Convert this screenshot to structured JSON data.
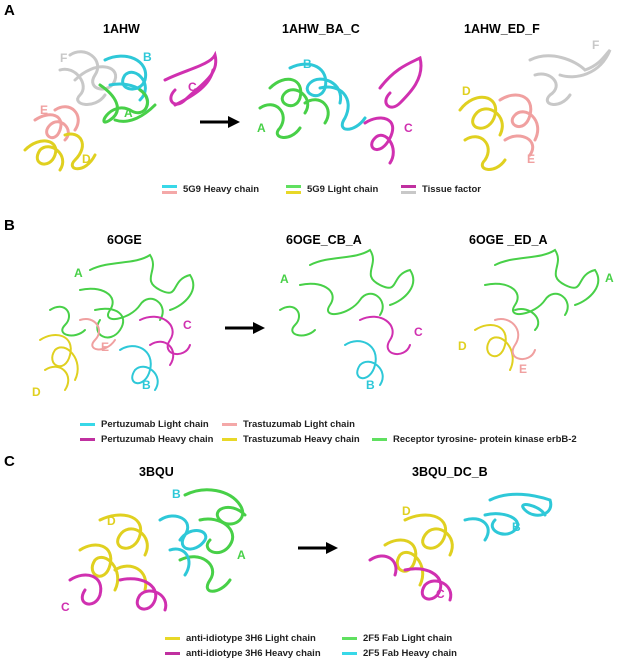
{
  "panel_A": {
    "letter": "A",
    "titles": [
      "1AHW",
      "1AHW_BA_C",
      "1AHW_ED_F"
    ],
    "structures": [
      {
        "labels": [
          {
            "text": "F",
            "color": "#c8c8c8"
          },
          {
            "text": "B",
            "color": "#2ec8d8"
          },
          {
            "text": "C",
            "color": "#d030b0"
          },
          {
            "text": "E",
            "color": "#f0a0a0"
          },
          {
            "text": "A",
            "color": "#48d048"
          },
          {
            "text": "D",
            "color": "#e0d020"
          }
        ]
      },
      {
        "labels": [
          {
            "text": "B",
            "color": "#2ec8d8"
          },
          {
            "text": "A",
            "color": "#48d048"
          },
          {
            "text": "C",
            "color": "#d030b0"
          }
        ]
      },
      {
        "labels": [
          {
            "text": "F",
            "color": "#c8c8c8"
          },
          {
            "text": "D",
            "color": "#e0d020"
          },
          {
            "text": "E",
            "color": "#f0a0a0"
          }
        ]
      }
    ],
    "legend": [
      {
        "label": "5G9 Heavy chain",
        "colors": [
          "#38d8e8",
          "#f4a8a8"
        ]
      },
      {
        "label": "5G9 Light chain",
        "colors": [
          "#60e060",
          "#e8d828"
        ]
      },
      {
        "label": "Tissue factor",
        "colors": [
          "#c030a0",
          "#c8c8c8"
        ]
      }
    ]
  },
  "panel_B": {
    "letter": "B",
    "titles": [
      "6OGE",
      "6OGE_CB_A",
      "6OGE _ED_A"
    ],
    "structures": [
      {
        "labels": [
          {
            "text": "A",
            "color": "#48d048"
          },
          {
            "text": "C",
            "color": "#d030b0"
          },
          {
            "text": "E",
            "color": "#f0a0a0"
          },
          {
            "text": "D",
            "color": "#e0d020"
          },
          {
            "text": "B",
            "color": "#2ec8d8"
          }
        ]
      },
      {
        "labels": [
          {
            "text": "A",
            "color": "#48d048"
          },
          {
            "text": "C",
            "color": "#d030b0"
          },
          {
            "text": "B",
            "color": "#2ec8d8"
          }
        ]
      },
      {
        "labels": [
          {
            "text": "A",
            "color": "#48d048"
          },
          {
            "text": "D",
            "color": "#e0d020"
          },
          {
            "text": "E",
            "color": "#f0a0a0"
          }
        ]
      }
    ],
    "legend": [
      {
        "label": "Pertuzumab Light chain",
        "color": "#38d8e8"
      },
      {
        "label": "Pertuzumab Heavy chain",
        "color": "#c030a0"
      },
      {
        "label": "Trastuzumab Light chain",
        "color": "#f4a8a8"
      },
      {
        "label": "Trastuzumab Heavy chain",
        "color": "#e8d828"
      },
      {
        "label": "Receptor tyrosine- protein kinase erbB-2",
        "color": "#60e060"
      }
    ]
  },
  "panel_C": {
    "letter": "C",
    "titles": [
      "3BQU",
      "3BQU_DC_B"
    ],
    "structures": [
      {
        "labels": [
          {
            "text": "B",
            "color": "#2ec8d8"
          },
          {
            "text": "D",
            "color": "#e0d020"
          },
          {
            "text": "A",
            "color": "#48d048"
          },
          {
            "text": "C",
            "color": "#d030b0"
          }
        ]
      },
      {
        "labels": [
          {
            "text": "D",
            "color": "#e0d020"
          },
          {
            "text": "B",
            "color": "#2ec8d8"
          },
          {
            "text": "C",
            "color": "#d030b0"
          }
        ]
      }
    ],
    "legend": [
      {
        "label": "anti-idiotype 3H6 Light chain",
        "color": "#e8d828"
      },
      {
        "label": "anti-idiotype 3H6 Heavy chain",
        "color": "#c030a0"
      },
      {
        "label": "2F5 Fab Light chain",
        "color": "#60e060"
      },
      {
        "label": "2F5 Fab Heavy chain",
        "color": "#38d8e8"
      }
    ]
  }
}
